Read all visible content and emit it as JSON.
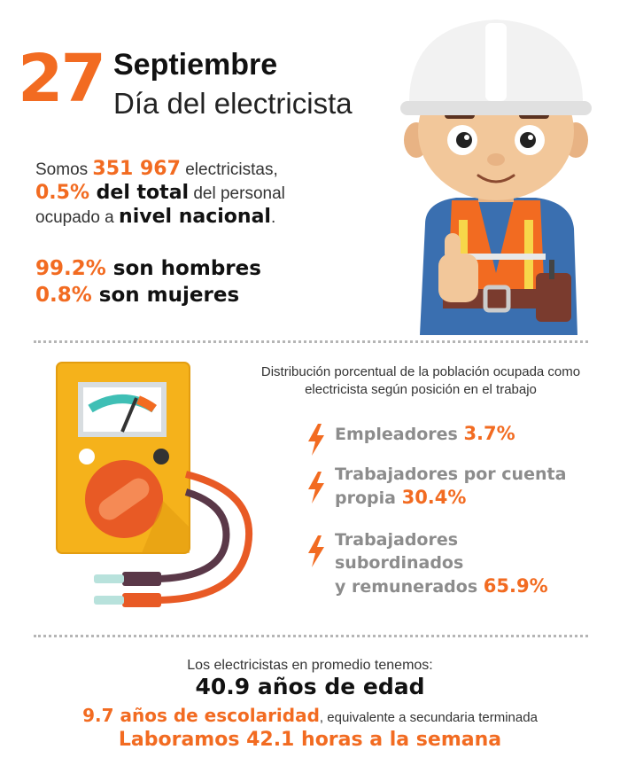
{
  "header": {
    "day_number": "27",
    "month": "Septiembre",
    "title": "Día del electricista"
  },
  "intro": {
    "l1_a": "Somos ",
    "l1_b": "351 967",
    "l1_c": " electricistas,",
    "l2_a": "0.5%",
    "l2_b": " del total",
    "l2_c": " del personal",
    "l3_a": "ocupado a ",
    "l3_b": "nivel nacional",
    "l3_c": "."
  },
  "gender": {
    "men_pct": "99.2%",
    "men_label": " son hombres",
    "women_pct": "0.8%",
    "women_label": " son mujeres"
  },
  "distribution": {
    "title_l1": "Distribución porcentual de la población ocupada como",
    "title_l2": "electricista según posición en el trabajo",
    "items": [
      {
        "l1": "Empleadores ",
        "l2": "",
        "pct": "3.7%",
        "value": 3.7
      },
      {
        "l1": "Trabajadores por cuenta",
        "l2": "propia ",
        "pct": "30.4%",
        "value": 30.4
      },
      {
        "l1": "Trabajadores subordinados",
        "l2": "y remunerados ",
        "pct": "65.9%",
        "value": 65.9
      }
    ]
  },
  "bottom": {
    "line1": "Los electricistas en promedio tenemos:",
    "line2": "40.9 años de edad",
    "line3_a": "9.7 años de escolaridad",
    "line3_b": ", equivalente a secundaria terminada",
    "line4": "Laboramos 42.1 horas a la semana"
  },
  "colors": {
    "accent": "#f26b21",
    "meter_body": "#f5b21b",
    "helmet": "#f2f2f2",
    "vest": "#f26b21",
    "shirt": "#3a6fb0"
  },
  "icons": [
    "lightning-bolt-icon",
    "multimeter-illustration",
    "electrician-mascot-illustration"
  ]
}
